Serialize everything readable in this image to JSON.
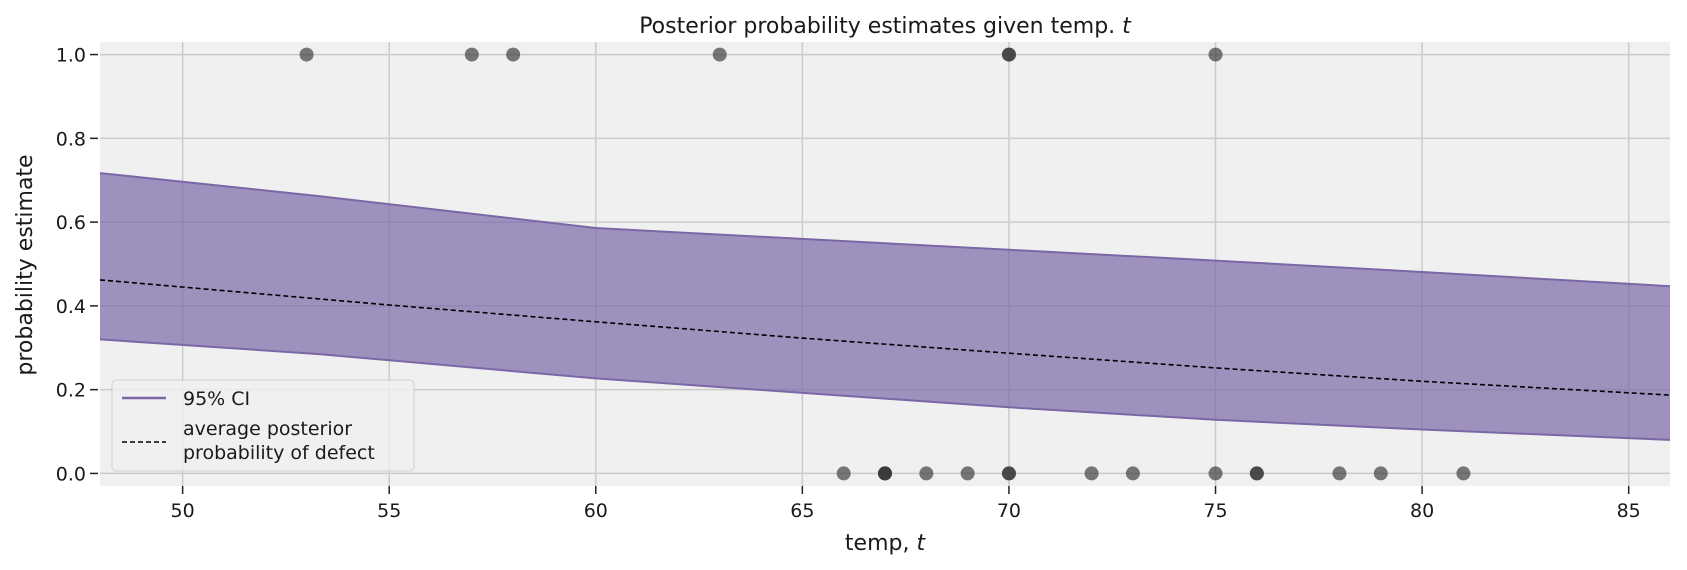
{
  "chart_data": {
    "type": "line",
    "title": "Posterior probability estimates given temp. t",
    "title_parts": [
      "Posterior probability estimates given temp. ",
      "t"
    ],
    "xlabel": "temp, t",
    "xlabel_parts": [
      "temp, ",
      "t"
    ],
    "ylabel": "probability estimate",
    "xlim": [
      48,
      86
    ],
    "ylim": [
      -0.03,
      1.03
    ],
    "xticks": [
      50,
      55,
      60,
      65,
      70,
      75,
      80,
      85
    ],
    "yticks": [
      0.0,
      0.2,
      0.4,
      0.6,
      0.8,
      1.0
    ],
    "ytick_labels": [
      "0.0",
      "0.2",
      "0.4",
      "0.6",
      "0.8",
      "1.0"
    ],
    "grid": true,
    "legend_position": "lower-left",
    "legend": [
      {
        "label": "95% CI",
        "style": "solid-line"
      },
      {
        "label_lines": [
          "average posterior",
          "probability of defect"
        ],
        "style": "dashed-line"
      }
    ],
    "series": [
      {
        "name": "95% CI",
        "kind": "band",
        "x": [
          48,
          53.3,
          60,
          70,
          75,
          80,
          86
        ],
        "upper": [
          0.717,
          0.662,
          0.586,
          0.534,
          0.508,
          0.481,
          0.447
        ],
        "lower": [
          0.32,
          0.285,
          0.227,
          0.158,
          0.128,
          0.105,
          0.08
        ]
      },
      {
        "name": "average posterior probability of defect",
        "kind": "line",
        "x": [
          48,
          55,
          60,
          65,
          70,
          75,
          80,
          86
        ],
        "y": [
          0.462,
          0.402,
          0.362,
          0.323,
          0.287,
          0.252,
          0.22,
          0.187
        ]
      },
      {
        "name": "observed defects",
        "kind": "scatter",
        "x": [
          53,
          57,
          58,
          63,
          70,
          70,
          75,
          66,
          67,
          67,
          67,
          68,
          69,
          70,
          70,
          72,
          73,
          75,
          76,
          76,
          78,
          79,
          81
        ],
        "y": [
          1,
          1,
          1,
          1,
          1,
          1,
          1,
          0,
          0,
          0,
          0,
          0,
          0,
          0,
          0,
          0,
          0,
          0,
          0,
          0,
          0,
          0,
          0
        ]
      }
    ],
    "colors": {
      "band_fill": "#7a68a6",
      "band_edge": "#7a68a6",
      "line": "#000000",
      "points": "#333333",
      "plot_background": "#f0f0f0",
      "grid": "#cbcbcb"
    }
  }
}
